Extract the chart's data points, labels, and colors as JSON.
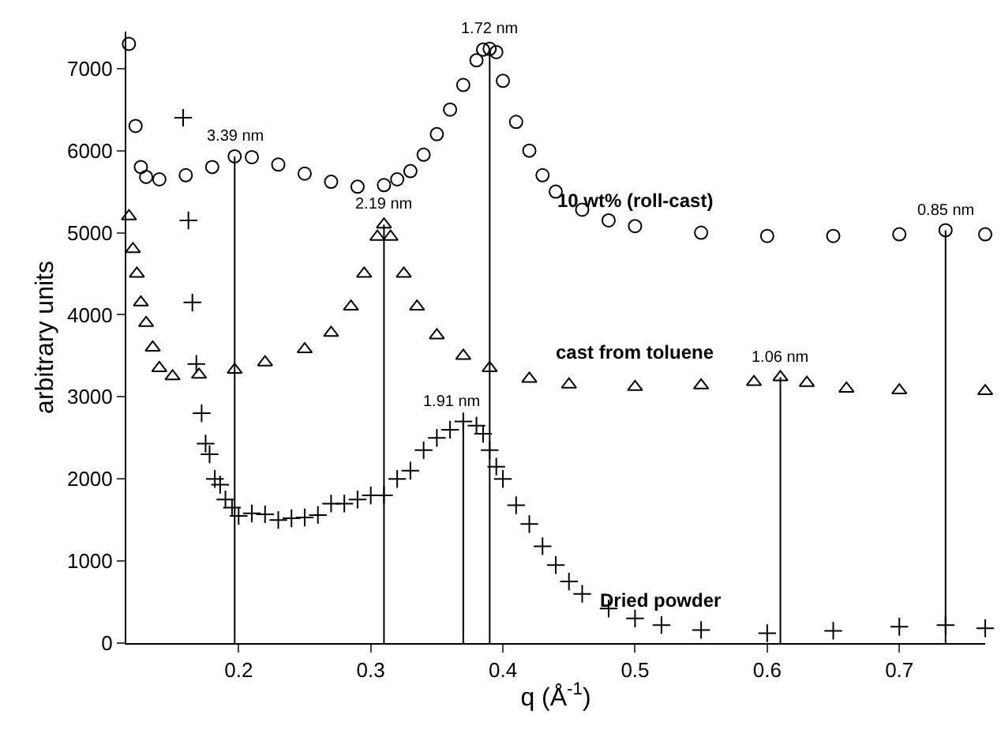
{
  "chart_data": {
    "type": "scatter",
    "xlabel": "q (Å$^{-1}$)",
    "ylabel": "arbitrary units",
    "xlim": [
      0.115,
      0.765
    ],
    "ylim": [
      0,
      7450
    ],
    "xticks": [
      0.2,
      0.3,
      0.4,
      0.5,
      0.6,
      0.7
    ],
    "yticks": [
      0,
      1000,
      2000,
      3000,
      4000,
      5000,
      6000,
      7000
    ],
    "legend": false,
    "series": [
      {
        "name": "10 wt% (roll-cast)",
        "color": "#000000",
        "marker": "circle",
        "x": [
          0.117,
          0.122,
          0.126,
          0.13,
          0.14,
          0.16,
          0.18,
          0.197,
          0.21,
          0.23,
          0.25,
          0.27,
          0.29,
          0.31,
          0.32,
          0.33,
          0.34,
          0.35,
          0.36,
          0.37,
          0.38,
          0.385,
          0.39,
          0.395,
          0.4,
          0.41,
          0.42,
          0.43,
          0.44,
          0.46,
          0.48,
          0.5,
          0.55,
          0.6,
          0.65,
          0.7,
          0.735,
          0.765
        ],
        "values": [
          7300,
          6300,
          5800,
          5680,
          5650,
          5700,
          5800,
          5930,
          5920,
          5830,
          5720,
          5620,
          5560,
          5580,
          5650,
          5750,
          5950,
          6200,
          6500,
          6800,
          7100,
          7230,
          7240,
          7200,
          6850,
          6350,
          6000,
          5700,
          5500,
          5280,
          5150,
          5080,
          5000,
          4960,
          4960,
          4980,
          5030,
          4980
        ]
      },
      {
        "name": "cast from toluene",
        "color": "#000000",
        "marker": "triangle",
        "x": [
          0.117,
          0.12,
          0.123,
          0.126,
          0.13,
          0.135,
          0.14,
          0.15,
          0.17,
          0.197,
          0.22,
          0.25,
          0.27,
          0.285,
          0.295,
          0.305,
          0.31,
          0.315,
          0.325,
          0.335,
          0.35,
          0.37,
          0.39,
          0.42,
          0.45,
          0.5,
          0.55,
          0.59,
          0.61,
          0.63,
          0.66,
          0.7,
          0.765
        ],
        "values": [
          5200,
          4800,
          4500,
          4150,
          3900,
          3600,
          3350,
          3250,
          3270,
          3330,
          3420,
          3580,
          3780,
          4100,
          4500,
          4950,
          5100,
          4950,
          4500,
          4100,
          3750,
          3500,
          3350,
          3220,
          3150,
          3120,
          3140,
          3180,
          3240,
          3170,
          3100,
          3080,
          3070
        ]
      },
      {
        "name": "Dried powder",
        "color": "#000000",
        "marker": "cross",
        "x": [
          0.158,
          0.162,
          0.165,
          0.168,
          0.172,
          0.175,
          0.178,
          0.182,
          0.186,
          0.19,
          0.195,
          0.2,
          0.21,
          0.22,
          0.23,
          0.24,
          0.25,
          0.26,
          0.27,
          0.28,
          0.29,
          0.3,
          0.31,
          0.32,
          0.33,
          0.34,
          0.35,
          0.36,
          0.37,
          0.38,
          0.385,
          0.39,
          0.395,
          0.4,
          0.41,
          0.42,
          0.43,
          0.44,
          0.45,
          0.46,
          0.48,
          0.5,
          0.52,
          0.55,
          0.6,
          0.65,
          0.7,
          0.735,
          0.765
        ],
        "values": [
          6400,
          5150,
          4150,
          3400,
          2800,
          2430,
          2300,
          2000,
          1930,
          1750,
          1650,
          1550,
          1580,
          1570,
          1500,
          1520,
          1530,
          1560,
          1700,
          1700,
          1750,
          1800,
          1800,
          2000,
          2100,
          2350,
          2500,
          2600,
          2700,
          2650,
          2550,
          2350,
          2150,
          2000,
          1680,
          1450,
          1180,
          950,
          750,
          600,
          420,
          300,
          220,
          160,
          120,
          150,
          200,
          220,
          180
        ]
      }
    ],
    "ref_lines": [
      {
        "axis": "x",
        "value": 0.197,
        "label": "3.39 nm",
        "color": "#000000"
      },
      {
        "axis": "x",
        "value": 0.39,
        "label": "1.72 nm",
        "color": "#000000"
      },
      {
        "axis": "x",
        "value": 0.735,
        "label": "0.85 nm",
        "color": "#000000"
      },
      {
        "axis": "x",
        "value": 0.31,
        "label": "2.19 nm",
        "color": "#000000"
      },
      {
        "axis": "x",
        "value": 0.61,
        "label": "1.06 nm",
        "color": "#000000"
      },
      {
        "axis": "x",
        "value": 0.37,
        "label": "1.91 nm",
        "color": "#000000"
      }
    ]
  }
}
